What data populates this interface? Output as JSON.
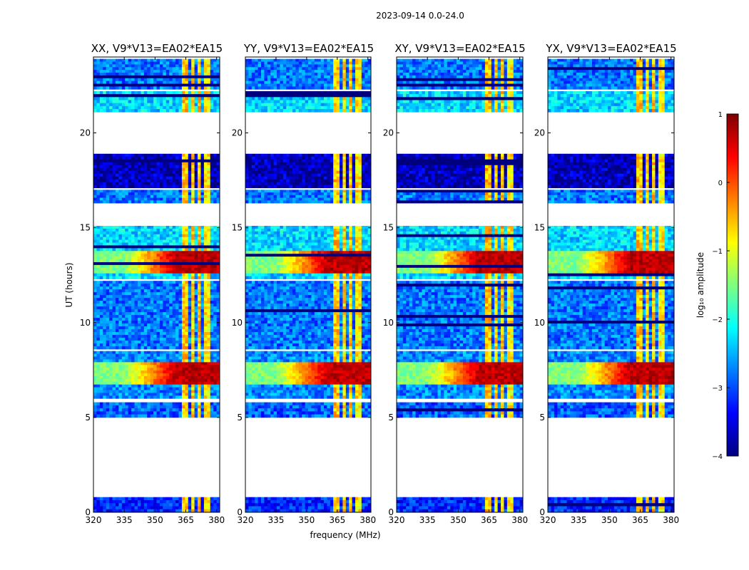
{
  "figure": {
    "suptitle": "2023-09-14 0.0-24.0"
  },
  "colors": {
    "jet": [
      "#00007f",
      "#0000ff",
      "#007fff",
      "#00ffff",
      "#7fff7f",
      "#ffff00",
      "#ff7f00",
      "#ff0000",
      "#7f0000"
    ]
  },
  "chart_data": [
    {
      "type": "heatmap",
      "title": "XX, V9*V13=EA02*EA15",
      "xlabel": "",
      "ylabel": "UT (hours)",
      "xlim": [
        320,
        381.5
      ],
      "ylim": [
        0,
        24
      ],
      "xticks": [
        "320",
        "335",
        "350",
        "365",
        "380"
      ],
      "yticks": [
        "0",
        "5",
        "10",
        "15",
        "20"
      ]
    },
    {
      "type": "heatmap",
      "title": "YY, V9*V13=EA02*EA15",
      "xlabel": "frequency (MHz)",
      "ylabel": "",
      "xlim": [
        320,
        381.5
      ],
      "ylim": [
        0,
        24
      ],
      "xticks": [
        "320",
        "335",
        "350",
        "365",
        "380"
      ],
      "yticks": [
        "0",
        "5",
        "10",
        "15",
        "20"
      ]
    },
    {
      "type": "heatmap",
      "title": "XY, V9*V13=EA02*EA15",
      "xlabel": "",
      "ylabel": "",
      "xlim": [
        320,
        381.5
      ],
      "ylim": [
        0,
        24
      ],
      "xticks": [
        "320",
        "335",
        "350",
        "365",
        "380"
      ],
      "yticks": [
        "0",
        "5",
        "10",
        "15",
        "20"
      ]
    },
    {
      "type": "heatmap",
      "title": "YX, V9*V13=EA02*EA15",
      "xlabel": "",
      "ylabel": "",
      "xlim": [
        320,
        381.5
      ],
      "ylim": [
        0,
        24
      ],
      "xticks": [
        "320",
        "335",
        "350",
        "365",
        "380"
      ],
      "yticks": [
        "0",
        "5",
        "10",
        "15",
        "20"
      ]
    }
  ],
  "time_blocks": [
    {
      "start": 0.0,
      "end": 0.8,
      "level": -3.2
    },
    {
      "start": 5.0,
      "end": 5.8,
      "level": -2.9
    },
    {
      "start": 6.0,
      "end": 8.5,
      "level": -2.7
    },
    {
      "start": 8.6,
      "end": 12.2,
      "level": -2.8
    },
    {
      "start": 12.3,
      "end": 15.1,
      "level": -2.3
    },
    {
      "start": 16.3,
      "end": 17.0,
      "level": -2.8
    },
    {
      "start": 17.1,
      "end": 18.9,
      "level": -3.7
    },
    {
      "start": 21.1,
      "end": 22.2,
      "level": -2.3
    },
    {
      "start": 22.3,
      "end": 23.9,
      "level": -2.8
    }
  ],
  "rfi_channels": [
    {
      "from": 363.5,
      "to": 366.3,
      "level": -0.6
    },
    {
      "from": 367.3,
      "to": 369.6,
      "level": -0.7
    },
    {
      "from": 370.6,
      "to": 373.0,
      "level": -0.6
    },
    {
      "from": 374.3,
      "to": 377.2,
      "level": -0.8
    }
  ],
  "strong_events": [
    {
      "start": 12.6,
      "end": 13.8,
      "level": 0.7
    },
    {
      "start": 6.8,
      "end": 7.9,
      "level": 0.7
    }
  ],
  "colorbar": {
    "label": "log₁₀ amplitude",
    "vmin": -4,
    "vmax": 1,
    "ticks": [
      "−4",
      "−3",
      "−2",
      "−1",
      "0",
      "1"
    ]
  }
}
